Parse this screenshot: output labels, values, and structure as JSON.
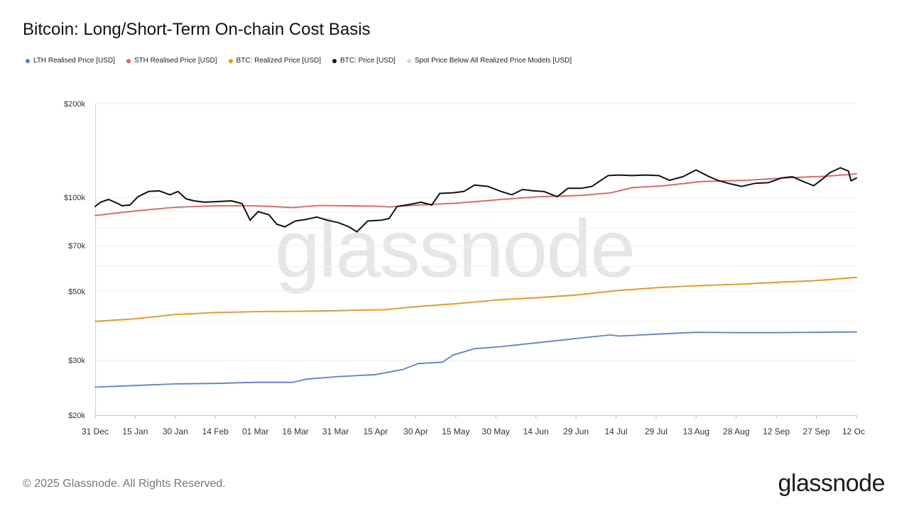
{
  "title": "Bitcoin: Long/Short-Term On-chain Cost Basis",
  "footer": "© 2025 Glassnode. All Rights Reserved.",
  "brand": "glassnode",
  "watermark": "glassnode",
  "legend": [
    {
      "label": "LTH Realised Price [USD]",
      "color": "#5b7fe0"
    },
    {
      "label": "STH Realised Price [USD]",
      "color": "#f25a5a"
    },
    {
      "label": "BTC: Realized Price [USD]",
      "color": "#f5900a"
    },
    {
      "label": "BTC: Price [USD]",
      "color": "#111111"
    },
    {
      "label": "Spot Price Below All Realized Price Models [USD]",
      "color": "#d9d2f2"
    }
  ],
  "chart_data": {
    "type": "line",
    "yscale": "log",
    "ylim": [
      20000,
      200000
    ],
    "y_ticks": [
      {
        "value": 200000,
        "label": "$200k"
      },
      {
        "value": 100000,
        "label": "$100k"
      },
      {
        "value": 70000,
        "label": "$70k"
      },
      {
        "value": 50000,
        "label": "$50k"
      },
      {
        "value": 30000,
        "label": "$30k"
      },
      {
        "value": 20000,
        "label": "$20k"
      }
    ],
    "x_ticks": [
      "31 Dec",
      "15 Jan",
      "30 Jan",
      "14 Feb",
      "01 Mar",
      "16 Mar",
      "31 Mar",
      "15 Apr",
      "30 Apr",
      "15 May",
      "30 May",
      "14 Jun",
      "29 Jun",
      "14 Jul",
      "29 Jul",
      "13 Aug",
      "28 Aug",
      "12 Sep",
      "27 Sep",
      "12 Oc"
    ],
    "x_tick_dates": [
      "2024-12-31",
      "2025-01-15",
      "2025-01-30",
      "2025-02-14",
      "2025-03-01",
      "2025-03-16",
      "2025-03-31",
      "2025-04-15",
      "2025-04-30",
      "2025-05-15",
      "2025-05-30",
      "2025-06-14",
      "2025-06-29",
      "2025-07-14",
      "2025-07-29",
      "2025-08-13",
      "2025-08-28",
      "2025-09-12",
      "2025-09-27",
      "2025-10-12"
    ],
    "series": [
      {
        "name": "LTH Realised Price [USD]",
        "color": "#5b7fe0",
        "points": [
          [
            "2024-12-31",
            24600
          ],
          [
            "2025-01-15",
            24900
          ],
          [
            "2025-01-30",
            25200
          ],
          [
            "2025-02-14",
            25300
          ],
          [
            "2025-03-01",
            25500
          ],
          [
            "2025-03-15",
            25500
          ],
          [
            "2025-03-20",
            26100
          ],
          [
            "2025-04-01",
            26600
          ],
          [
            "2025-04-15",
            27000
          ],
          [
            "2025-04-25",
            28000
          ],
          [
            "2025-05-01",
            29300
          ],
          [
            "2025-05-10",
            29600
          ],
          [
            "2025-05-14",
            31200
          ],
          [
            "2025-05-22",
            32700
          ],
          [
            "2025-06-01",
            33200
          ],
          [
            "2025-06-15",
            34200
          ],
          [
            "2025-07-01",
            35400
          ],
          [
            "2025-07-12",
            36200
          ],
          [
            "2025-07-15",
            35900
          ],
          [
            "2025-08-01",
            36500
          ],
          [
            "2025-08-13",
            36900
          ],
          [
            "2025-08-28",
            36800
          ],
          [
            "2025-09-12",
            36800
          ],
          [
            "2025-09-27",
            36900
          ],
          [
            "2025-10-12",
            37000
          ]
        ]
      },
      {
        "name": "STH Realised Price [USD]",
        "color": "#f25a5a",
        "points": [
          [
            "2024-12-31",
            87500
          ],
          [
            "2025-01-15",
            90500
          ],
          [
            "2025-01-30",
            93000
          ],
          [
            "2025-02-14",
            94000
          ],
          [
            "2025-03-01",
            94000
          ],
          [
            "2025-03-15",
            92800
          ],
          [
            "2025-03-25",
            94200
          ],
          [
            "2025-04-15",
            93800
          ],
          [
            "2025-04-20",
            93200
          ],
          [
            "2025-05-01",
            94500
          ],
          [
            "2025-05-15",
            95800
          ],
          [
            "2025-06-01",
            98500
          ],
          [
            "2025-06-15",
            100500
          ],
          [
            "2025-07-01",
            101500
          ],
          [
            "2025-07-12",
            103500
          ],
          [
            "2025-07-20",
            107500
          ],
          [
            "2025-08-01",
            109000
          ],
          [
            "2025-08-15",
            112500
          ],
          [
            "2025-09-01",
            113500
          ],
          [
            "2025-09-15",
            115500
          ],
          [
            "2025-10-01",
            117000
          ],
          [
            "2025-10-12",
            119000
          ]
        ]
      },
      {
        "name": "BTC: Realized Price [USD]",
        "color": "#f5900a",
        "points": [
          [
            "2024-12-31",
            40000
          ],
          [
            "2025-01-15",
            40800
          ],
          [
            "2025-01-30",
            42100
          ],
          [
            "2025-02-14",
            42700
          ],
          [
            "2025-03-01",
            43000
          ],
          [
            "2025-03-15",
            43100
          ],
          [
            "2025-04-01",
            43300
          ],
          [
            "2025-04-18",
            43600
          ],
          [
            "2025-04-30",
            44600
          ],
          [
            "2025-05-15",
            45600
          ],
          [
            "2025-06-01",
            47000
          ],
          [
            "2025-06-15",
            47700
          ],
          [
            "2025-06-29",
            48600
          ],
          [
            "2025-07-14",
            50200
          ],
          [
            "2025-07-29",
            51300
          ],
          [
            "2025-08-13",
            52100
          ],
          [
            "2025-08-28",
            52600
          ],
          [
            "2025-09-12",
            53400
          ],
          [
            "2025-09-27",
            54100
          ],
          [
            "2025-10-12",
            55400
          ]
        ]
      },
      {
        "name": "BTC: Price [USD]",
        "color": "#111111",
        "points": [
          [
            "2024-12-31",
            93500
          ],
          [
            "2025-01-02",
            96500
          ],
          [
            "2025-01-05",
            98500
          ],
          [
            "2025-01-08",
            96000
          ],
          [
            "2025-01-10",
            94000
          ],
          [
            "2025-01-13",
            94500
          ],
          [
            "2025-01-16",
            100500
          ],
          [
            "2025-01-20",
            104500
          ],
          [
            "2025-01-24",
            105000
          ],
          [
            "2025-01-28",
            102000
          ],
          [
            "2025-01-31",
            104500
          ],
          [
            "2025-02-03",
            99000
          ],
          [
            "2025-02-06",
            97500
          ],
          [
            "2025-02-10",
            96500
          ],
          [
            "2025-02-15",
            97000
          ],
          [
            "2025-02-20",
            97500
          ],
          [
            "2025-02-24",
            95500
          ],
          [
            "2025-02-27",
            84500
          ],
          [
            "2025-03-02",
            90000
          ],
          [
            "2025-03-06",
            88000
          ],
          [
            "2025-03-09",
            82000
          ],
          [
            "2025-03-12",
            80500
          ],
          [
            "2025-03-16",
            84000
          ],
          [
            "2025-03-20",
            85000
          ],
          [
            "2025-03-24",
            86500
          ],
          [
            "2025-03-28",
            84500
          ],
          [
            "2025-04-01",
            83000
          ],
          [
            "2025-04-05",
            80500
          ],
          [
            "2025-04-08",
            77500
          ],
          [
            "2025-04-12",
            84000
          ],
          [
            "2025-04-17",
            84500
          ],
          [
            "2025-04-20",
            85500
          ],
          [
            "2025-04-23",
            93500
          ],
          [
            "2025-04-28",
            95000
          ],
          [
            "2025-05-02",
            96500
          ],
          [
            "2025-05-06",
            94500
          ],
          [
            "2025-05-09",
            103000
          ],
          [
            "2025-05-14",
            103500
          ],
          [
            "2025-05-18",
            104500
          ],
          [
            "2025-05-22",
            109500
          ],
          [
            "2025-05-27",
            108500
          ],
          [
            "2025-06-01",
            104500
          ],
          [
            "2025-06-05",
            102000
          ],
          [
            "2025-06-09",
            106000
          ],
          [
            "2025-06-13",
            105000
          ],
          [
            "2025-06-17",
            104500
          ],
          [
            "2025-06-22",
            100500
          ],
          [
            "2025-06-26",
            107000
          ],
          [
            "2025-07-01",
            107000
          ],
          [
            "2025-07-05",
            108500
          ],
          [
            "2025-07-11",
            117500
          ],
          [
            "2025-07-15",
            118000
          ],
          [
            "2025-07-20",
            117500
          ],
          [
            "2025-07-25",
            118000
          ],
          [
            "2025-07-30",
            117500
          ],
          [
            "2025-08-03",
            113500
          ],
          [
            "2025-08-08",
            116500
          ],
          [
            "2025-08-13",
            122500
          ],
          [
            "2025-08-17",
            117500
          ],
          [
            "2025-08-21",
            113500
          ],
          [
            "2025-08-25",
            111000
          ],
          [
            "2025-08-30",
            108500
          ],
          [
            "2025-09-04",
            111000
          ],
          [
            "2025-09-09",
            111500
          ],
          [
            "2025-09-14",
            115500
          ],
          [
            "2025-09-18",
            116500
          ],
          [
            "2025-09-22",
            112500
          ],
          [
            "2025-09-26",
            109000
          ],
          [
            "2025-09-29",
            114000
          ],
          [
            "2025-10-02",
            120000
          ],
          [
            "2025-10-06",
            124500
          ],
          [
            "2025-10-09",
            121500
          ],
          [
            "2025-10-10",
            113000
          ],
          [
            "2025-10-12",
            115500
          ]
        ]
      },
      {
        "name": "Spot Price Below All Realized Price Models [USD]",
        "color": "#d9d2f2",
        "points": []
      }
    ]
  }
}
